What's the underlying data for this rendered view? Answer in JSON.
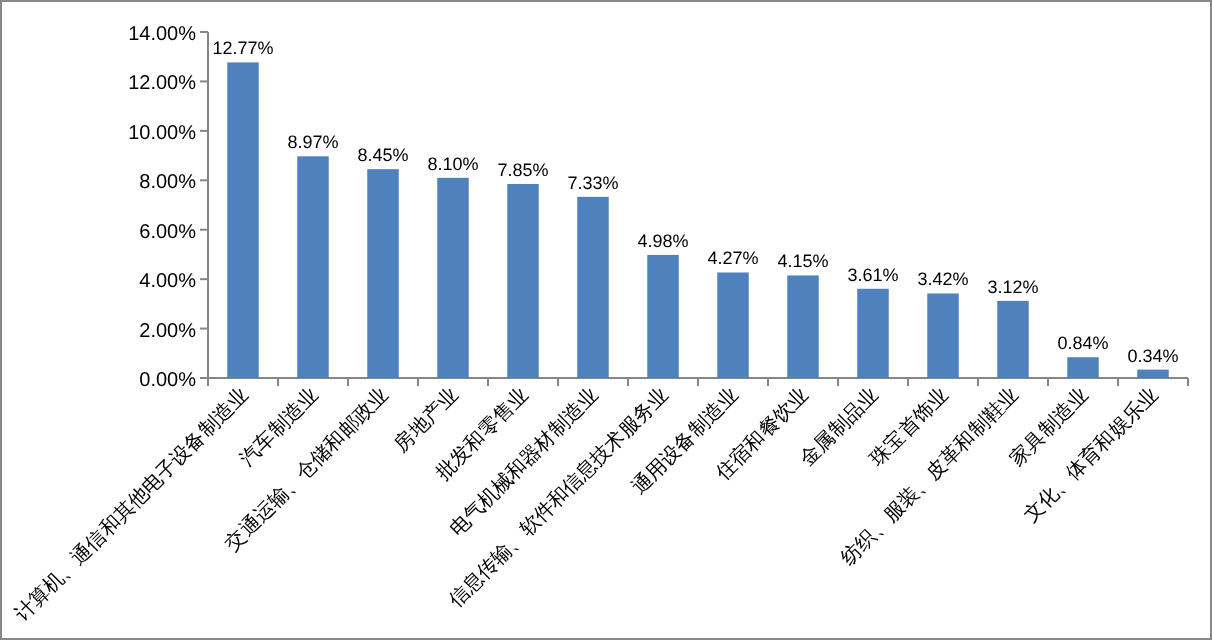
{
  "chart_data": {
    "type": "bar",
    "categories": [
      "计算机、通信和其他电子设备制造业",
      "汽车制造业",
      "交通运输、仓储和邮政业",
      "房地产业",
      "批发和零售业",
      "电气机械和器材制造业",
      "信息传输、软件和信息技术服务业",
      "通用设备制造业",
      "住宿和餐饮业",
      "金属制品业",
      "珠宝首饰业",
      "纺织、服装、皮革和制鞋业",
      "家具制造业",
      "文化、体育和娱乐业"
    ],
    "values": [
      12.77,
      8.97,
      8.45,
      8.1,
      7.85,
      7.33,
      4.98,
      4.27,
      4.15,
      3.61,
      3.42,
      3.12,
      0.84,
      0.34
    ],
    "value_labels": [
      "12.77%",
      "8.97%",
      "8.45%",
      "8.10%",
      "7.85%",
      "7.33%",
      "4.98%",
      "4.27%",
      "4.15%",
      "3.61%",
      "3.42%",
      "3.12%",
      "0.84%",
      "0.34%"
    ],
    "color": "#4f81bd",
    "ylim": [
      0,
      14
    ],
    "yticks": [
      {
        "value": 0,
        "label": "0.00%"
      },
      {
        "value": 2,
        "label": "2.00%"
      },
      {
        "value": 4,
        "label": "4.00%"
      },
      {
        "value": 6,
        "label": "6.00%"
      },
      {
        "value": 8,
        "label": "8.00%"
      },
      {
        "value": 10,
        "label": "10.00%"
      },
      {
        "value": 12,
        "label": "12.00%"
      },
      {
        "value": 14,
        "label": "14.00%"
      }
    ],
    "grid": false
  }
}
